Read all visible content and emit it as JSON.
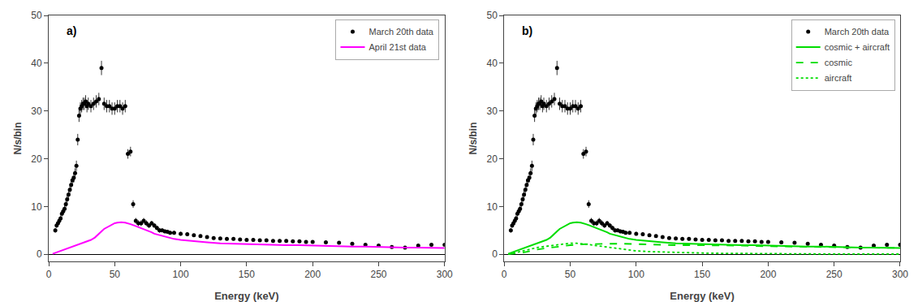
{
  "chart_data": [
    {
      "type": "line",
      "annotations": [
        "a)"
      ],
      "xlabel": "Energy (keV)",
      "ylabel": "N/s/bin",
      "xlim": [
        0,
        300
      ],
      "ylim": [
        -1.5,
        50
      ],
      "xticks": [
        0,
        50,
        100,
        150,
        200,
        250,
        300
      ],
      "yticks": [
        0,
        10,
        20,
        30,
        40,
        50
      ],
      "grid": false,
      "legend": "upper right",
      "series": [
        {
          "name": "March 20th data",
          "type": "scatter",
          "marker": "circle",
          "color": "#000000",
          "x": [
            5,
            6,
            7,
            8,
            9,
            10,
            11,
            12,
            13,
            14,
            15,
            16,
            17,
            18,
            19,
            20,
            21,
            22,
            23,
            24,
            25,
            26,
            27,
            28,
            29,
            30,
            32,
            34,
            36,
            38,
            40,
            42,
            44,
            46,
            48,
            50,
            52,
            54,
            56,
            58,
            60,
            62,
            64,
            66,
            68,
            70,
            72,
            74,
            76,
            78,
            80,
            82,
            84,
            86,
            88,
            90,
            92,
            95,
            100,
            105,
            110,
            115,
            120,
            125,
            130,
            135,
            140,
            145,
            150,
            155,
            160,
            165,
            170,
            175,
            180,
            185,
            190,
            195,
            200,
            210,
            220,
            230,
            240,
            250,
            260,
            270,
            280,
            290,
            300
          ],
          "values": [
            5.0,
            6.0,
            6.5,
            7.0,
            7.5,
            8.5,
            9.0,
            9.5,
            10.5,
            11.5,
            12.5,
            13.5,
            14.5,
            15.5,
            16.0,
            17.0,
            18.5,
            24.0,
            29.0,
            30.5,
            31.0,
            31.5,
            31.5,
            32.0,
            31.0,
            31.5,
            31.0,
            31.5,
            32.0,
            32.5,
            39.0,
            31.5,
            31.0,
            31.0,
            30.5,
            30.5,
            31.0,
            31.0,
            30.5,
            31.0,
            21.0,
            21.5,
            10.5,
            7.0,
            6.5,
            6.5,
            7.0,
            6.5,
            6.0,
            6.5,
            6.0,
            5.5,
            5.0,
            5.0,
            4.8,
            4.7,
            4.5,
            4.5,
            4.3,
            4.2,
            4.0,
            3.8,
            3.6,
            3.4,
            3.3,
            3.2,
            3.2,
            3.1,
            3.0,
            3.0,
            2.9,
            2.9,
            2.8,
            2.8,
            2.8,
            2.7,
            2.7,
            2.6,
            2.6,
            2.5,
            2.4,
            2.2,
            2.0,
            1.8,
            1.5,
            1.4,
            1.8,
            2.0,
            2.0
          ],
          "yerr": [
            0.5,
            0.5,
            0.5,
            0.6,
            0.6,
            0.6,
            0.6,
            0.7,
            0.7,
            0.8,
            0.8,
            0.8,
            0.9,
            0.9,
            1.0,
            1.0,
            1.1,
            1.2,
            1.3,
            1.3,
            1.3,
            1.3,
            1.3,
            1.3,
            1.3,
            1.3,
            1.3,
            1.3,
            1.3,
            1.3,
            1.5,
            1.3,
            1.3,
            1.3,
            1.3,
            1.3,
            1.3,
            1.3,
            1.3,
            1.3,
            1.0,
            1.0,
            0.8,
            0.6,
            0.6,
            0.6,
            0.6,
            0.6,
            0.5,
            0.5,
            0.5,
            0.5,
            0.5,
            0.4,
            0.4,
            0.4,
            0.4,
            0.4,
            0.4,
            0.4,
            0.3,
            0.3,
            0.3,
            0.3,
            0.3,
            0.3,
            0.3,
            0.3,
            0.3,
            0.3,
            0.3,
            0.3,
            0.3,
            0.3,
            0.3,
            0.3,
            0.3,
            0.3,
            0.3,
            0.3,
            0.3,
            0.2,
            0.2,
            0.2,
            0.2,
            0.2,
            0.2,
            0.2,
            0.2
          ]
        },
        {
          "name": "April 21st data",
          "type": "line",
          "line_style": "solid",
          "color": "#ff00ff",
          "x": [
            3,
            5,
            8,
            10,
            12,
            14,
            16,
            18,
            20,
            22,
            24,
            26,
            28,
            30,
            32,
            35,
            38,
            40,
            42,
            45,
            48,
            50,
            52,
            55,
            58,
            60,
            62,
            65,
            68,
            70,
            72,
            75,
            78,
            80,
            85,
            90,
            95,
            100,
            110,
            120,
            130,
            140,
            150,
            160,
            170,
            180,
            190,
            200,
            210,
            220,
            230,
            240,
            250,
            260,
            270,
            280,
            290,
            300
          ],
          "values": [
            0.1,
            0.3,
            0.6,
            0.8,
            1.0,
            1.2,
            1.4,
            1.6,
            1.8,
            2.0,
            2.2,
            2.4,
            2.6,
            2.8,
            3.0,
            3.5,
            4.2,
            4.8,
            5.3,
            5.8,
            6.2,
            6.5,
            6.6,
            6.7,
            6.6,
            6.5,
            6.3,
            6.0,
            5.7,
            5.5,
            5.2,
            4.9,
            4.6,
            4.3,
            3.9,
            3.5,
            3.2,
            3.0,
            2.7,
            2.5,
            2.3,
            2.2,
            2.1,
            2.0,
            2.0,
            1.9,
            1.9,
            1.8,
            1.8,
            1.7,
            1.6,
            1.6,
            1.5,
            1.5,
            1.4,
            1.4,
            1.4,
            1.3
          ]
        }
      ]
    },
    {
      "type": "line",
      "annotations": [
        "b)"
      ],
      "xlabel": "Energy (keV)",
      "ylabel": "N/s/bin",
      "xlim": [
        0,
        300
      ],
      "ylim": [
        -1.5,
        50
      ],
      "xticks": [
        0,
        50,
        100,
        150,
        200,
        250,
        300
      ],
      "yticks": [
        0,
        10,
        20,
        30,
        40,
        50
      ],
      "grid": false,
      "legend": "upper right",
      "series": [
        {
          "name": "March 20th data",
          "type": "scatter",
          "marker": "circle",
          "color": "#000000",
          "x": [
            5,
            6,
            7,
            8,
            9,
            10,
            11,
            12,
            13,
            14,
            15,
            16,
            17,
            18,
            19,
            20,
            21,
            22,
            23,
            24,
            25,
            26,
            27,
            28,
            29,
            30,
            32,
            34,
            36,
            38,
            40,
            42,
            44,
            46,
            48,
            50,
            52,
            54,
            56,
            58,
            60,
            62,
            64,
            66,
            68,
            70,
            72,
            74,
            76,
            78,
            80,
            82,
            84,
            86,
            88,
            90,
            92,
            95,
            100,
            105,
            110,
            115,
            120,
            125,
            130,
            135,
            140,
            145,
            150,
            155,
            160,
            165,
            170,
            175,
            180,
            185,
            190,
            195,
            200,
            210,
            220,
            230,
            240,
            250,
            260,
            270,
            280,
            290,
            300
          ],
          "values": [
            5.0,
            6.0,
            6.5,
            7.0,
            7.5,
            8.5,
            9.0,
            9.5,
            10.5,
            11.5,
            12.5,
            13.5,
            14.5,
            15.5,
            16.0,
            17.0,
            18.5,
            24.0,
            29.0,
            30.5,
            31.0,
            31.5,
            31.5,
            32.0,
            31.0,
            31.5,
            31.0,
            31.5,
            32.0,
            32.5,
            39.0,
            31.5,
            31.0,
            31.0,
            30.5,
            30.5,
            31.0,
            31.0,
            30.5,
            31.0,
            21.0,
            21.5,
            10.5,
            7.0,
            6.5,
            6.5,
            7.0,
            6.5,
            6.0,
            6.5,
            6.0,
            5.5,
            5.0,
            5.0,
            4.8,
            4.7,
            4.5,
            4.5,
            4.3,
            4.2,
            4.0,
            3.8,
            3.6,
            3.4,
            3.3,
            3.2,
            3.2,
            3.1,
            3.0,
            3.0,
            2.9,
            2.9,
            2.8,
            2.8,
            2.8,
            2.7,
            2.7,
            2.6,
            2.6,
            2.5,
            2.4,
            2.2,
            2.0,
            1.8,
            1.5,
            1.4,
            1.8,
            2.0,
            2.0
          ],
          "yerr": [
            0.5,
            0.5,
            0.5,
            0.6,
            0.6,
            0.6,
            0.6,
            0.7,
            0.7,
            0.8,
            0.8,
            0.8,
            0.9,
            0.9,
            1.0,
            1.0,
            1.1,
            1.2,
            1.3,
            1.3,
            1.3,
            1.3,
            1.3,
            1.3,
            1.3,
            1.3,
            1.3,
            1.3,
            1.3,
            1.3,
            1.5,
            1.3,
            1.3,
            1.3,
            1.3,
            1.3,
            1.3,
            1.3,
            1.3,
            1.3,
            1.0,
            1.0,
            0.8,
            0.6,
            0.6,
            0.6,
            0.6,
            0.6,
            0.5,
            0.5,
            0.5,
            0.5,
            0.5,
            0.4,
            0.4,
            0.4,
            0.4,
            0.4,
            0.4,
            0.4,
            0.3,
            0.3,
            0.3,
            0.3,
            0.3,
            0.3,
            0.3,
            0.3,
            0.3,
            0.3,
            0.3,
            0.3,
            0.3,
            0.3,
            0.3,
            0.3,
            0.3,
            0.3,
            0.3,
            0.3,
            0.3,
            0.2,
            0.2,
            0.2,
            0.2,
            0.2,
            0.2,
            0.2,
            0.2
          ]
        },
        {
          "name": "cosmic + aircraft",
          "type": "line",
          "line_style": "solid",
          "color": "#00dd00",
          "x": [
            3,
            5,
            8,
            10,
            12,
            14,
            16,
            18,
            20,
            22,
            24,
            26,
            28,
            30,
            32,
            35,
            38,
            40,
            42,
            45,
            48,
            50,
            52,
            55,
            58,
            60,
            62,
            65,
            68,
            70,
            72,
            75,
            78,
            80,
            85,
            90,
            95,
            100,
            110,
            120,
            130,
            140,
            150,
            160,
            170,
            180,
            190,
            200,
            210,
            220,
            230,
            240,
            250,
            260,
            270,
            280,
            290,
            300
          ],
          "values": [
            0.1,
            0.3,
            0.6,
            0.8,
            1.0,
            1.2,
            1.4,
            1.6,
            1.8,
            2.0,
            2.2,
            2.4,
            2.6,
            2.8,
            3.0,
            3.5,
            4.2,
            4.8,
            5.3,
            5.8,
            6.2,
            6.5,
            6.6,
            6.7,
            6.6,
            6.5,
            6.3,
            6.0,
            5.7,
            5.5,
            5.2,
            4.9,
            4.6,
            4.3,
            3.9,
            3.5,
            3.2,
            3.0,
            2.7,
            2.5,
            2.3,
            2.2,
            2.1,
            2.0,
            2.0,
            1.9,
            1.9,
            1.8,
            1.8,
            1.7,
            1.6,
            1.6,
            1.5,
            1.5,
            1.4,
            1.4,
            1.4,
            1.3
          ]
        },
        {
          "name": "cosmic",
          "type": "line",
          "line_style": "dashed",
          "color": "#00dd00",
          "x": [
            3,
            5,
            8,
            10,
            12,
            15,
            18,
            20,
            25,
            30,
            35,
            40,
            50,
            60,
            70,
            80,
            90,
            100,
            110,
            120,
            130,
            140,
            150,
            160,
            170,
            180,
            190,
            200,
            220,
            240,
            260,
            280,
            300
          ],
          "values": [
            0.02,
            0.05,
            0.1,
            0.15,
            0.25,
            0.4,
            0.6,
            0.75,
            1.0,
            1.2,
            1.4,
            1.6,
            1.9,
            2.1,
            2.2,
            2.2,
            2.2,
            2.1,
            2.0,
            2.0,
            1.9,
            1.9,
            1.9,
            1.8,
            1.8,
            1.8,
            1.7,
            1.7,
            1.6,
            1.5,
            1.4,
            1.4,
            1.3
          ]
        },
        {
          "name": "aircraft",
          "type": "line",
          "line_style": "dotted",
          "color": "#00dd00",
          "x": [
            3,
            5,
            8,
            10,
            12,
            15,
            18,
            20,
            25,
            30,
            35,
            40,
            45,
            50,
            55,
            60,
            65,
            70,
            75,
            80,
            85,
            90,
            100,
            110,
            120,
            130,
            140,
            150,
            160,
            170,
            180,
            190,
            200,
            220,
            240,
            260,
            280,
            300
          ],
          "values": [
            0.05,
            0.12,
            0.25,
            0.4,
            0.55,
            0.75,
            0.95,
            1.1,
            1.4,
            1.6,
            1.8,
            2.0,
            2.2,
            2.3,
            2.3,
            2.2,
            2.0,
            1.8,
            1.6,
            1.4,
            1.2,
            1.0,
            0.7,
            0.55,
            0.45,
            0.38,
            0.3,
            0.25,
            0.2,
            0.17,
            0.14,
            0.12,
            0.1,
            0.08,
            0.06,
            0.05,
            0.04,
            0.03
          ]
        }
      ]
    }
  ]
}
